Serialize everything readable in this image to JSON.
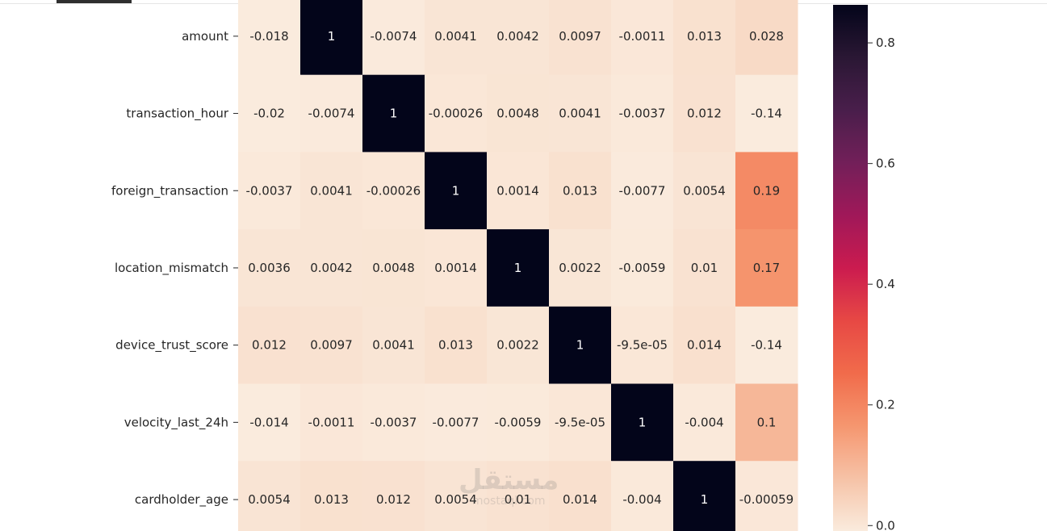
{
  "chart_data": {
    "type": "heatmap",
    "rows": [
      "amount",
      "transaction_hour",
      "foreign_transaction",
      "location_mismatch",
      "device_trust_score",
      "velocity_last_24h",
      "cardholder_age"
    ],
    "values": [
      [
        -0.018,
        1,
        -0.0074,
        0.0041,
        0.0042,
        0.0097,
        -0.0011,
        0.013,
        0.028
      ],
      [
        -0.02,
        -0.0074,
        1,
        -0.00026,
        0.0048,
        0.0041,
        -0.0037,
        0.012,
        -0.14
      ],
      [
        -0.0037,
        0.0041,
        -0.00026,
        1,
        0.0014,
        0.013,
        -0.0077,
        0.0054,
        0.19
      ],
      [
        0.0036,
        0.0042,
        0.0048,
        0.0014,
        1,
        0.0022,
        -0.0059,
        0.01,
        0.17
      ],
      [
        0.012,
        0.0097,
        0.0041,
        0.013,
        0.0022,
        1,
        -9.5e-05,
        0.014,
        -0.14
      ],
      [
        -0.014,
        -0.0011,
        -0.0037,
        -0.0077,
        -0.0059,
        -9.5e-05,
        1,
        -0.004,
        0.1
      ],
      [
        0.0054,
        0.013,
        0.012,
        0.0054,
        0.01,
        0.014,
        -0.004,
        1,
        -0.00059
      ]
    ],
    "annotations": [
      [
        "-0.018",
        "1",
        "-0.0074",
        "0.0041",
        "0.0042",
        "0.0097",
        "-0.0011",
        "0.013",
        "0.028"
      ],
      [
        "-0.02",
        "-0.0074",
        "1",
        "-0.00026",
        "0.0048",
        "0.0041",
        "-0.0037",
        "0.012",
        "-0.14"
      ],
      [
        "-0.0037",
        "0.0041",
        "-0.00026",
        "1",
        "0.0014",
        "0.013",
        "-0.0077",
        "0.0054",
        "0.19"
      ],
      [
        "0.0036",
        "0.0042",
        "0.0048",
        "0.0014",
        "1",
        "0.0022",
        "-0.0059",
        "0.01",
        "0.17"
      ],
      [
        "0.012",
        "0.0097",
        "0.0041",
        "0.013",
        "0.0022",
        "1",
        "-9.5e-05",
        "0.014",
        "-0.14"
      ],
      [
        "-0.014",
        "-0.0011",
        "-0.0037",
        "-0.0077",
        "-0.0059",
        "-9.5e-05",
        "1",
        "-0.004",
        "0.1"
      ],
      [
        "0.0054",
        "0.013",
        "0.012",
        "0.0054",
        "0.01",
        "0.014",
        "-0.004",
        "1",
        "-0.00059"
      ]
    ],
    "colorbar": {
      "ticks": [
        0.0,
        0.2,
        0.4,
        0.6,
        0.8
      ],
      "tick_labels": [
        "0.0",
        "0.2",
        "0.4",
        "0.6",
        "0.8"
      ],
      "colormap": "rocket_r"
    }
  },
  "watermark": {
    "text_arabic": "مستقل",
    "text_latin": "mostaql.com"
  }
}
